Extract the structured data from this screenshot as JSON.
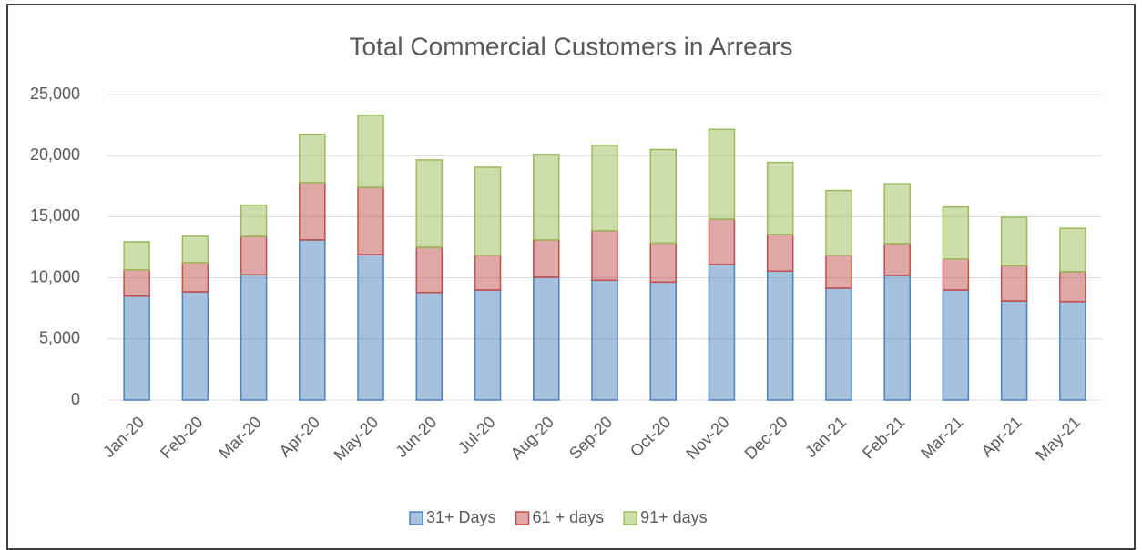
{
  "chart_data": {
    "type": "stacked_bar",
    "title": "Total Commercial Customers in Arrears",
    "categories": [
      "Jan-20",
      "Feb-20",
      "Mar-20",
      "Apr-20",
      "May-20",
      "Jun-20",
      "Jul-20",
      "Aug-20",
      "Sep-20",
      "Oct-20",
      "Nov-20",
      "Dec-20",
      "Jan-21",
      "Feb-21",
      "Mar-21",
      "Apr-21",
      "May-21"
    ],
    "series": [
      {
        "name": "31+ Days",
        "color": "#4f81bd",
        "values": [
          8500,
          8850,
          10250,
          13100,
          11900,
          8800,
          9000,
          10050,
          9800,
          9650,
          11100,
          10550,
          9150,
          10200,
          9000,
          8100,
          8050
        ]
      },
      {
        "name": "61 + days",
        "color": "#c0504d",
        "values": [
          2150,
          2400,
          3150,
          4700,
          5500,
          3700,
          2850,
          3050,
          4050,
          3200,
          3700,
          3000,
          2700,
          2600,
          2550,
          2900,
          2450
        ]
      },
      {
        "name": "91+ days",
        "color": "#9bbb59",
        "values": [
          2300,
          2150,
          2550,
          3950,
          5900,
          7150,
          7200,
          7000,
          7000,
          7650,
          7350,
          5900,
          5300,
          4900,
          4250,
          3950,
          3550
        ]
      }
    ],
    "ylim": [
      0,
      25000
    ],
    "yticks": [
      0,
      {
        "value": 5000,
        "label": "5,000"
      },
      {
        "value": 10000,
        "label": "10,000"
      },
      {
        "value": 15000,
        "label": "15,000"
      },
      {
        "value": 20000,
        "label": "20,000"
      },
      {
        "value": 25000,
        "label": "25,000"
      }
    ],
    "grid": true,
    "legend": "bottom"
  }
}
